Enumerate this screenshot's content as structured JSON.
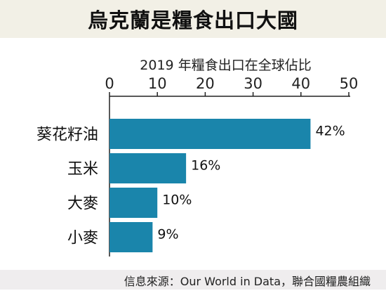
{
  "title": "烏克蘭是糧食出口大國",
  "source": "信息來源：Our World in Data，聯合國糧農組織",
  "chart_data": {
    "type": "bar",
    "orientation": "horizontal",
    "axis_title": "2019 年糧食出口在全球佔比",
    "categories": [
      "葵花籽油",
      "玉米",
      "大麥",
      "小麥"
    ],
    "values": [
      42,
      16,
      10,
      9
    ],
    "value_labels": [
      "42%",
      "16%",
      "10%",
      "9%"
    ],
    "xlim": [
      0,
      50
    ],
    "ticks": [
      "0",
      "10",
      "20",
      "30",
      "40",
      "50"
    ],
    "axis_position": "top",
    "grid": false,
    "bar_color": "#1a85ab"
  }
}
